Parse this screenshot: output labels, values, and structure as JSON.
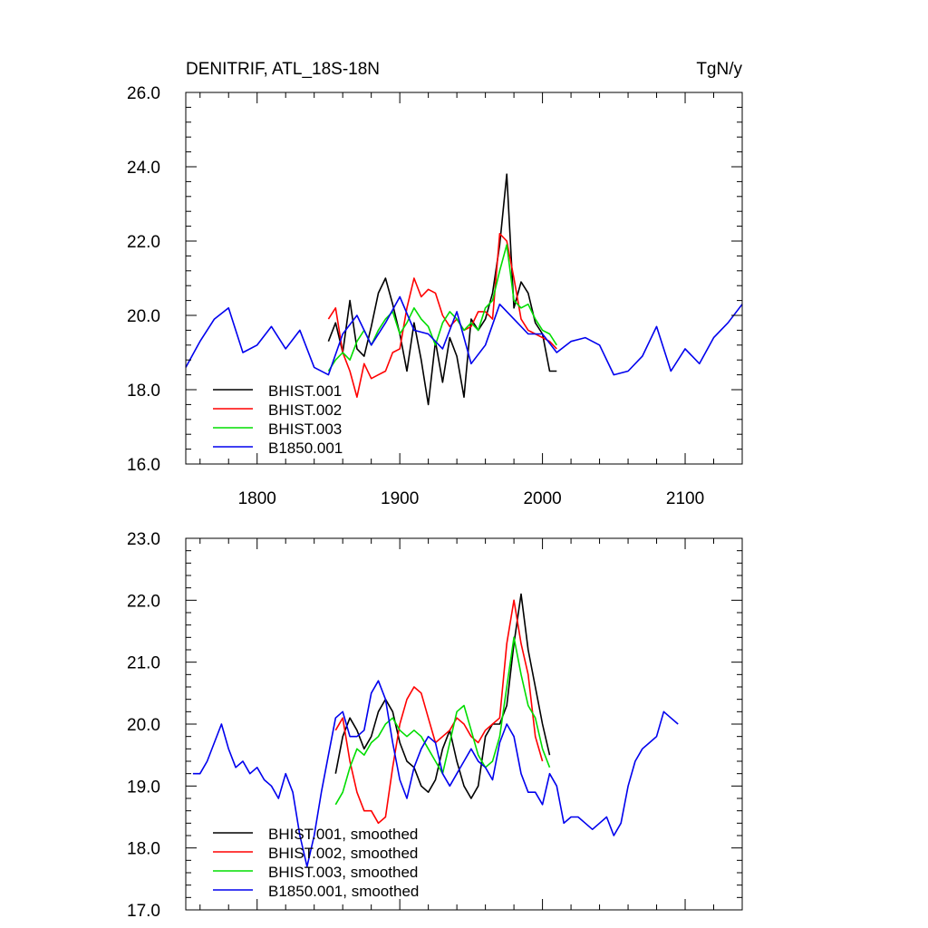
{
  "chart_data": [
    {
      "type": "line",
      "title": "DENITRIF, ATL_18S-18N",
      "units": "TgN/y",
      "xlabel": "",
      "ylabel": "",
      "xlim": [
        1750,
        2140
      ],
      "ylim": [
        16.0,
        26.0
      ],
      "xticks": [
        1800,
        1900,
        2000,
        2100
      ],
      "xtick_labels": [
        "1800",
        "1900",
        "2000",
        "2100"
      ],
      "yticks": [
        16.0,
        18.0,
        20.0,
        22.0,
        24.0,
        26.0
      ],
      "ytick_labels": [
        "16.0",
        "18.0",
        "20.0",
        "22.0",
        "24.0",
        "26.0"
      ],
      "legend_position": "bottom-left",
      "series": [
        {
          "name": "BHIST.001",
          "color": "#000000",
          "x_start": 1850,
          "x_step": 5,
          "values": [
            19.3,
            19.8,
            19.0,
            20.4,
            19.1,
            18.9,
            19.7,
            20.6,
            21.0,
            20.3,
            19.5,
            18.5,
            19.8,
            18.8,
            17.6,
            19.3,
            18.2,
            19.4,
            18.9,
            17.8,
            19.9,
            19.6,
            19.9,
            20.6,
            21.9,
            23.8,
            20.2,
            20.9,
            20.6,
            19.8,
            19.5,
            18.5,
            18.5
          ]
        },
        {
          "name": "BHIST.002",
          "color": "#ff0000",
          "x_start": 1850,
          "x_step": 5,
          "values": [
            19.9,
            20.2,
            19.0,
            18.5,
            17.8,
            18.7,
            18.3,
            18.4,
            18.5,
            19.0,
            19.1,
            20.2,
            21.0,
            20.5,
            20.7,
            20.6,
            20.0,
            19.7,
            19.9,
            19.6,
            19.7,
            20.1,
            20.1,
            19.9,
            22.2,
            22.0,
            21.0,
            19.9,
            19.6,
            19.5,
            19.4,
            19.3,
            19.1
          ]
        },
        {
          "name": "BHIST.003",
          "color": "#00dd00",
          "x_start": 1850,
          "x_step": 5,
          "values": [
            18.5,
            18.8,
            19.0,
            18.8,
            19.3,
            19.6,
            19.2,
            19.6,
            19.9,
            20.1,
            19.5,
            19.8,
            20.2,
            19.9,
            19.7,
            19.2,
            19.8,
            20.1,
            19.9,
            19.6,
            19.8,
            19.6,
            20.2,
            20.4,
            21.2,
            21.9,
            20.4,
            20.2,
            20.3,
            19.9,
            19.6,
            19.5,
            19.2
          ]
        },
        {
          "name": "B1850.001",
          "color": "#0000ee",
          "x_start": 1750,
          "x_step": 10,
          "values": [
            18.6,
            19.3,
            19.9,
            20.2,
            19.0,
            19.2,
            19.7,
            19.1,
            19.6,
            18.6,
            18.4,
            19.5,
            20.0,
            19.2,
            19.8,
            20.5,
            19.6,
            19.5,
            19.1,
            20.1,
            18.7,
            19.2,
            20.3,
            19.9,
            19.5,
            19.5,
            19.0,
            19.3,
            19.4,
            19.2,
            18.4,
            18.5,
            18.9,
            19.7,
            18.5,
            19.1,
            18.7,
            19.4,
            19.8,
            20.3
          ]
        }
      ]
    },
    {
      "type": "line",
      "title": "",
      "xlabel": "",
      "ylabel": "",
      "xlim": [
        1750,
        2140
      ],
      "ylim": [
        17.0,
        23.0
      ],
      "xticks": [
        1800,
        1900,
        2000,
        2100
      ],
      "yticks": [
        17.0,
        18.0,
        19.0,
        20.0,
        21.0,
        22.0,
        23.0
      ],
      "ytick_labels": [
        "17.0",
        "18.0",
        "19.0",
        "20.0",
        "21.0",
        "22.0",
        "23.0"
      ],
      "legend_position": "bottom-left",
      "series": [
        {
          "name": "BHIST.001, smoothed",
          "color": "#000000",
          "x_start": 1855,
          "x_step": 5,
          "values": [
            19.2,
            19.8,
            20.1,
            19.9,
            19.6,
            19.8,
            20.2,
            20.4,
            20.2,
            19.7,
            19.4,
            19.3,
            19.0,
            18.9,
            19.1,
            19.6,
            19.9,
            19.4,
            19.0,
            18.8,
            19.0,
            19.8,
            20.0,
            20.0,
            20.3,
            21.3,
            22.1,
            21.2,
            20.6,
            20.0,
            19.5
          ]
        },
        {
          "name": "BHIST.002, smoothed",
          "color": "#ff0000",
          "x_start": 1855,
          "x_step": 5,
          "values": [
            19.9,
            20.1,
            19.4,
            18.9,
            18.6,
            18.6,
            18.4,
            18.5,
            19.3,
            20.0,
            20.4,
            20.6,
            20.5,
            20.1,
            19.7,
            19.8,
            19.9,
            20.1,
            20.0,
            19.8,
            19.7,
            19.9,
            20.0,
            20.1,
            21.3,
            22.0,
            21.3,
            20.8,
            19.8,
            19.4
          ]
        },
        {
          "name": "BHIST.003, smoothed",
          "color": "#00dd00",
          "x_start": 1855,
          "x_step": 5,
          "values": [
            18.7,
            18.9,
            19.3,
            19.6,
            19.5,
            19.7,
            19.8,
            20.0,
            20.1,
            19.9,
            19.8,
            19.9,
            19.8,
            19.6,
            19.4,
            19.2,
            19.7,
            20.2,
            20.3,
            19.9,
            19.5,
            19.3,
            19.4,
            19.8,
            20.6,
            21.4,
            20.8,
            20.3,
            20.1,
            19.6,
            19.3
          ]
        },
        {
          "name": "B1850.001, smoothed",
          "color": "#0000ee",
          "x_start": 1755,
          "x_step": 5,
          "values": [
            19.2,
            19.2,
            19.4,
            19.7,
            20.0,
            19.6,
            19.3,
            19.4,
            19.2,
            19.3,
            19.1,
            19.0,
            18.8,
            19.2,
            18.9,
            18.2,
            17.7,
            18.2,
            18.9,
            19.5,
            20.1,
            20.2,
            19.8,
            19.8,
            19.9,
            20.5,
            20.7,
            20.4,
            19.7,
            19.1,
            18.8,
            19.3,
            19.6,
            19.8,
            19.7,
            19.2,
            19.0,
            19.2,
            19.4,
            19.6,
            19.4,
            19.3,
            19.1,
            19.7,
            20.0,
            19.8,
            19.2,
            18.9,
            18.9,
            18.7,
            19.2,
            19.0,
            18.4,
            18.5,
            18.5,
            18.4,
            18.3,
            18.4,
            18.5,
            18.2,
            18.4,
            19.0,
            19.4,
            19.6,
            19.7,
            19.8,
            20.2,
            20.1,
            20.0
          ]
        }
      ]
    }
  ]
}
